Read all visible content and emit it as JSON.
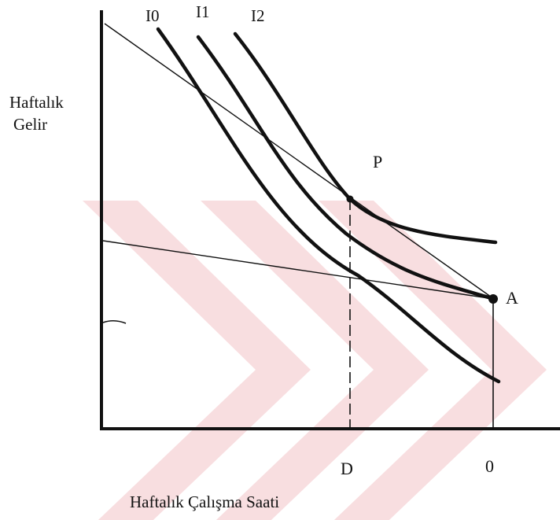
{
  "diagram": {
    "y_axis_title": [
      "Haftalık",
      "Gelir"
    ],
    "x_axis_title": "Haftalık Çalışma Saati",
    "indifference_curves": [
      "I0",
      "I1",
      "I2"
    ],
    "points": {
      "p": "P",
      "a": "A"
    },
    "x_ticks": {
      "d": "D",
      "zero": "0"
    },
    "colors": {
      "ink": "#111111",
      "watermark": "#f4c4c8"
    }
  }
}
